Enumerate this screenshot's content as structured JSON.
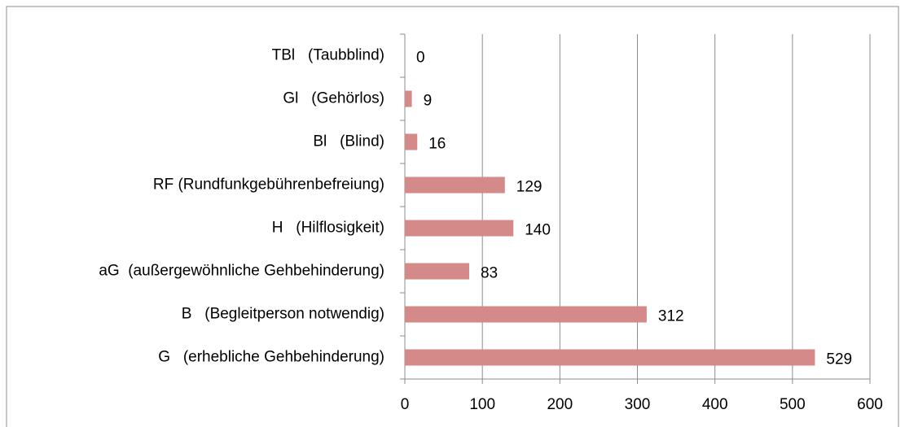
{
  "chart_data": {
    "type": "hbar",
    "categories": [
      "TBl   (Taubblind)",
      "Gl   (Gehörlos)",
      "Bl   (Blind)",
      "RF (Rundfunkgebührenbefreiung)",
      "H   (Hilflosigkeit)",
      "aG  (außergewöhnliche Gehbehinderung)",
      "B   (Begleitperson notwendig)",
      "G   (erhebliche Gehbehinderung)"
    ],
    "values": [
      0,
      9,
      16,
      129,
      140,
      83,
      312,
      529
    ],
    "color": "#d48a89",
    "xlim": [
      0,
      600
    ],
    "xticks": [
      0,
      100,
      200,
      300,
      400,
      500,
      600
    ],
    "grid": true
  }
}
